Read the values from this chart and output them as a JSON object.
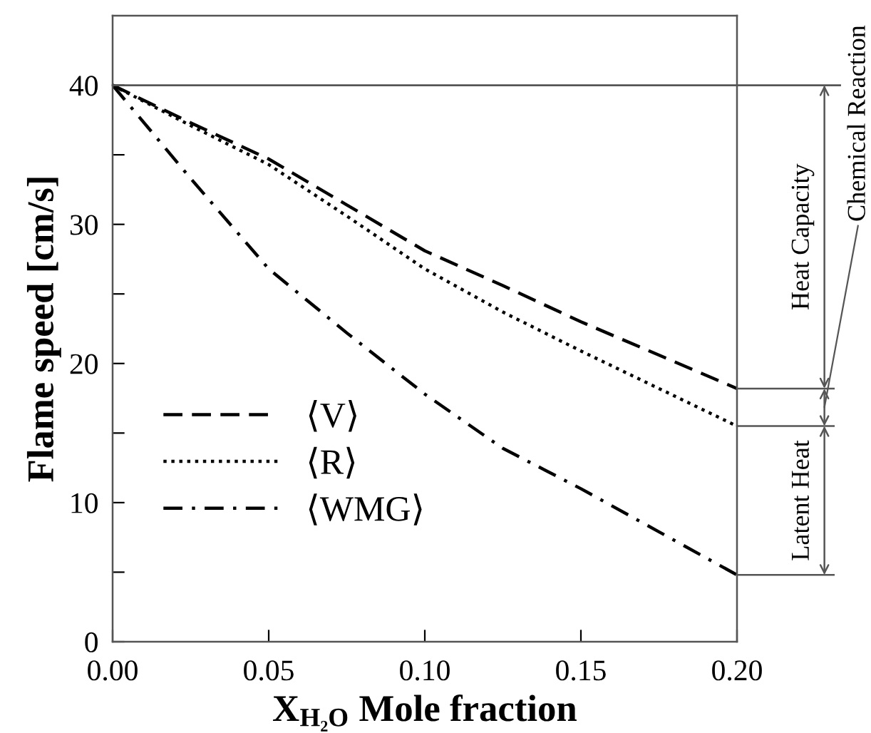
{
  "chart_data": {
    "type": "line",
    "xlabel": "X$_{H₂O}$ Mole fraction",
    "ylabel": "Flame speed [cm/s]",
    "x": [
      0.0,
      0.025,
      0.05,
      0.075,
      0.1,
      0.125,
      0.15,
      0.175,
      0.2
    ],
    "series": [
      {
        "name": "⟨V⟩",
        "color": "#000000",
        "line_style": "dashed",
        "values": [
          40,
          37.3,
          34.7,
          31.4,
          28.1,
          25.6,
          23.0,
          20.6,
          18.2
        ]
      },
      {
        "name": "⟨R⟩",
        "color": "#000000",
        "line_style": "dotted",
        "values": [
          40,
          37.1,
          34.3,
          30.6,
          26.8,
          23.7,
          20.9,
          18.2,
          15.5
        ]
      },
      {
        "name": "⟨WMG⟩",
        "color": "#000000",
        "line_style": "dashdot",
        "values": [
          40,
          33.3,
          26.8,
          22.2,
          17.8,
          13.9,
          11.0,
          7.9,
          4.8
        ]
      }
    ],
    "xlim": [
      0,
      0.2
    ],
    "ylim": [
      0,
      45
    ],
    "xticks": [
      {
        "value": 0,
        "label": "0.00"
      },
      0.05,
      {
        "value": 0.1,
        "label": "0.10"
      },
      0.15,
      {
        "value": 0.2,
        "label": "0.20"
      }
    ],
    "yticks": [
      0,
      {
        "value": 5,
        "label": null
      },
      10,
      {
        "value": 15,
        "label": null
      },
      20,
      {
        "value": 25,
        "label": null
      },
      30,
      {
        "value": 35,
        "label": null
      },
      40
    ],
    "ref_lines": [
      {
        "axis": "y",
        "value": 40,
        "label": null,
        "color": "#555555"
      }
    ],
    "annotations": [
      "Heat Capacity",
      "Chemical Reaction",
      "Latent Heat"
    ],
    "legend": "bottom left",
    "grid": false,
    "marker": "none"
  }
}
